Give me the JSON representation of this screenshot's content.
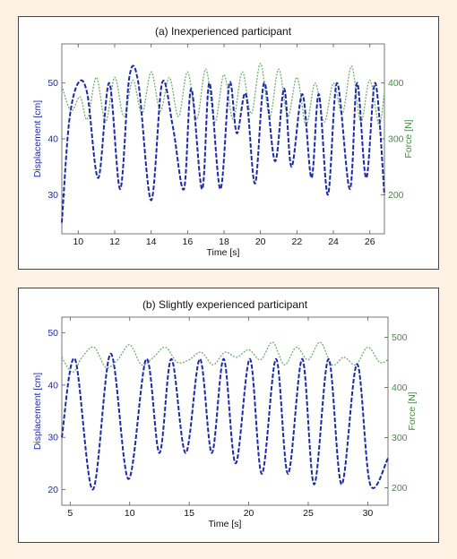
{
  "chart_data": [
    {
      "type": "line",
      "title": "(a) Inexperienced participant",
      "xlabel": "Time [s]",
      "ylabel": "Displacement [cm]",
      "y2label": "Force [N]",
      "xlim": [
        9.1,
        26.8
      ],
      "ylim": [
        23,
        57
      ],
      "y2lim": [
        130,
        470
      ],
      "xticks": [
        10,
        12,
        14,
        16,
        18,
        20,
        22,
        24,
        26
      ],
      "yticks": [
        30,
        40,
        50
      ],
      "y2ticks": [
        200,
        300,
        400
      ],
      "grid": false,
      "colors": {
        "displacement": "#1c2aa8",
        "force": "#6fae6f"
      },
      "series": [
        {
          "axis": "left",
          "x": [
            9.1,
            9.5,
            10.0,
            10.5,
            11.1,
            11.7,
            12.3,
            12.8,
            13.3,
            14.0,
            14.6,
            15.2,
            15.8,
            16.2,
            16.8,
            17.2,
            17.8,
            18.3,
            18.7,
            19.2,
            19.7,
            20.2,
            20.8,
            21.3,
            21.7,
            22.3,
            22.8,
            23.2,
            23.7,
            24.2,
            24.9,
            25.3,
            25.8,
            26.3,
            26.8
          ],
          "values": [
            25,
            43,
            50,
            48,
            33,
            50,
            31,
            51,
            50,
            29,
            50,
            42,
            31,
            49,
            31,
            50,
            31,
            50,
            41,
            48,
            32,
            50,
            36,
            49,
            35,
            48,
            33,
            48,
            30,
            50,
            31,
            50,
            33,
            50,
            30
          ]
        },
        {
          "axis": "right",
          "x": [
            9.1,
            9.6,
            10.1,
            10.5,
            11.0,
            11.5,
            12.0,
            12.5,
            13.0,
            13.5,
            14.0,
            14.5,
            15.0,
            15.5,
            16.0,
            16.5,
            17.0,
            17.5,
            18.0,
            18.5,
            19.0,
            19.5,
            20.0,
            20.5,
            21.0,
            21.5,
            22.0,
            22.5,
            23.0,
            23.5,
            24.0,
            24.5,
            25.0,
            25.5,
            26.0,
            26.5,
            26.8
          ],
          "values": [
            395,
            350,
            375,
            335,
            410,
            330,
            410,
            340,
            405,
            345,
            420,
            350,
            410,
            340,
            420,
            335,
            425,
            330,
            415,
            335,
            420,
            345,
            435,
            340,
            425,
            340,
            410,
            325,
            400,
            330,
            400,
            345,
            430,
            330,
            405,
            325,
            385
          ]
        }
      ]
    },
    {
      "type": "line",
      "title": "(b) Slightly experienced participant",
      "xlabel": "Time [s]",
      "ylabel": "Displacement [cm]",
      "y2label": "Force [N]",
      "xlim": [
        4.3,
        31.7
      ],
      "ylim": [
        17,
        53
      ],
      "y2lim": [
        165,
        540
      ],
      "xticks": [
        5,
        10,
        15,
        20,
        25,
        30
      ],
      "yticks": [
        20,
        30,
        40,
        50
      ],
      "y2ticks": [
        200,
        300,
        400,
        500
      ],
      "grid": false,
      "colors": {
        "displacement": "#1c2aa8",
        "force": "#6fae6f"
      },
      "series": [
        {
          "axis": "left",
          "x": [
            4.3,
            5.4,
            6.9,
            8.4,
            9.9,
            11.4,
            12.5,
            13.5,
            14.7,
            15.9,
            16.9,
            17.9,
            18.9,
            20.1,
            21.1,
            22.3,
            23.3,
            24.5,
            25.5,
            26.7,
            27.8,
            29.1,
            30.2,
            31.7
          ],
          "values": [
            30,
            45,
            20,
            46,
            22,
            45,
            27,
            45,
            27,
            45,
            27,
            45,
            25,
            45,
            23,
            45,
            23,
            45,
            21,
            45,
            21,
            44,
            21,
            26
          ]
        },
        {
          "axis": "right",
          "x": [
            4.3,
            5.2,
            6.0,
            7.0,
            8.0,
            9.0,
            10.0,
            11.0,
            12.0,
            13.0,
            14.0,
            15.0,
            16.0,
            17.0,
            18.0,
            19.0,
            20.0,
            21.0,
            22.0,
            23.0,
            24.0,
            25.0,
            26.0,
            27.0,
            28.0,
            29.0,
            30.0,
            31.0,
            31.7
          ],
          "values": [
            460,
            430,
            460,
            480,
            440,
            455,
            485,
            445,
            460,
            480,
            450,
            455,
            470,
            445,
            470,
            460,
            475,
            455,
            490,
            445,
            480,
            455,
            490,
            445,
            460,
            445,
            480,
            450,
            455
          ]
        }
      ]
    }
  ]
}
